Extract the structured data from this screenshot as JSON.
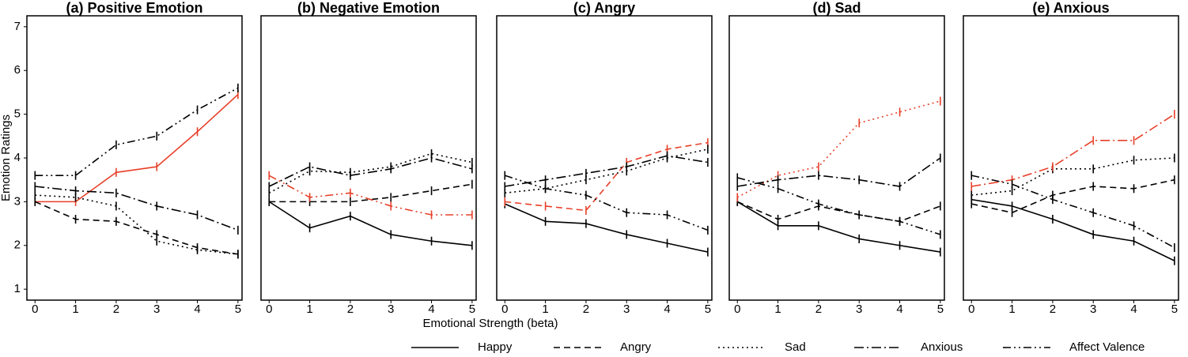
{
  "chart_data": {
    "type": "line",
    "y_label": "Emotion Ratings",
    "x_label": "Emotional Strength (beta)",
    "x": [
      0,
      1,
      2,
      3,
      4,
      5
    ],
    "xlim": [
      -0.2,
      5.1
    ],
    "xticks": [
      0,
      1,
      2,
      3,
      4,
      5
    ],
    "ylim": [
      0.75,
      7.25
    ],
    "yticks": [
      1,
      2,
      3,
      4,
      5,
      6,
      7
    ],
    "error_bar": 0.1,
    "series_styles": [
      {
        "name": "Happy",
        "dash": "solid"
      },
      {
        "name": "Angry",
        "dash": "dashed"
      },
      {
        "name": "Sad",
        "dash": "dotted"
      },
      {
        "name": "Anxious",
        "dash": "dashdot"
      },
      {
        "name": "Affect Valence",
        "dash": "dashdotdot"
      }
    ],
    "panels": [
      {
        "title": "(a) Positive Emotion",
        "series": [
          {
            "color": "#e8402a",
            "values": [
              3.0,
              3.0,
              3.67,
              3.8,
              4.6,
              5.45
            ]
          },
          {
            "color": "#000000",
            "values": [
              3.0,
              2.6,
              2.55,
              2.25,
              1.95,
              1.8
            ]
          },
          {
            "color": "#000000",
            "values": [
              3.15,
              3.1,
              2.9,
              2.1,
              1.9,
              1.8
            ]
          },
          {
            "color": "#000000",
            "values": [
              3.35,
              3.25,
              3.2,
              2.9,
              2.7,
              2.35
            ]
          },
          {
            "color": "#000000",
            "values": [
              3.6,
              3.6,
              4.3,
              4.5,
              5.1,
              5.6
            ]
          }
        ]
      },
      {
        "title": "(b) Negative Emotion",
        "series": [
          {
            "color": "#000000",
            "values": [
              3.0,
              2.4,
              2.67,
              2.25,
              2.1,
              2.0
            ]
          },
          {
            "color": "#000000",
            "values": [
              3.0,
              3.0,
              3.0,
              3.1,
              3.25,
              3.4
            ]
          },
          {
            "color": "#000000",
            "values": [
              3.2,
              3.7,
              3.67,
              3.8,
              4.1,
              3.9
            ]
          },
          {
            "color": "#000000",
            "values": [
              3.35,
              3.8,
              3.6,
              3.75,
              4.0,
              3.75
            ]
          },
          {
            "color": "#e8402a",
            "values": [
              3.6,
              3.1,
              3.2,
              2.9,
              2.7,
              2.7
            ]
          }
        ]
      },
      {
        "title": "(c) Angry",
        "series": [
          {
            "color": "#000000",
            "values": [
              2.95,
              2.55,
              2.5,
              2.25,
              2.05,
              1.85
            ]
          },
          {
            "color": "#e8402a",
            "values": [
              3.0,
              2.9,
              2.8,
              3.9,
              4.2,
              4.35
            ]
          },
          {
            "color": "#000000",
            "values": [
              3.2,
              3.3,
              3.5,
              3.7,
              4.0,
              4.2
            ]
          },
          {
            "color": "#000000",
            "values": [
              3.35,
              3.5,
              3.65,
              3.8,
              4.05,
              3.9
            ]
          },
          {
            "color": "#000000",
            "values": [
              3.6,
              3.3,
              3.15,
              2.75,
              2.7,
              2.35
            ]
          }
        ]
      },
      {
        "title": "(d) Sad",
        "series": [
          {
            "color": "#000000",
            "values": [
              3.0,
              2.45,
              2.45,
              2.15,
              2.0,
              1.85
            ]
          },
          {
            "color": "#000000",
            "values": [
              3.0,
              2.6,
              2.9,
              2.7,
              2.55,
              2.9
            ]
          },
          {
            "color": "#e8402a",
            "values": [
              3.1,
              3.6,
              3.8,
              4.8,
              5.05,
              5.3
            ]
          },
          {
            "color": "#000000",
            "values": [
              3.35,
              3.5,
              3.6,
              3.5,
              3.35,
              4.0
            ]
          },
          {
            "color": "#000000",
            "values": [
              3.55,
              3.3,
              2.95,
              2.7,
              2.55,
              2.25
            ]
          }
        ]
      },
      {
        "title": "(e) Anxious",
        "series": [
          {
            "color": "#000000",
            "values": [
              3.05,
              2.9,
              2.6,
              2.25,
              2.1,
              1.65
            ]
          },
          {
            "color": "#000000",
            "values": [
              2.95,
              2.75,
              3.15,
              3.35,
              3.3,
              3.5
            ]
          },
          {
            "color": "#000000",
            "values": [
              3.15,
              3.25,
              3.75,
              3.75,
              3.95,
              4.0
            ]
          },
          {
            "color": "#e8402a",
            "values": [
              3.35,
              3.5,
              3.8,
              4.4,
              4.4,
              5.0
            ]
          },
          {
            "color": "#000000",
            "values": [
              3.6,
              3.4,
              3.05,
              2.75,
              2.45,
              1.95
            ]
          }
        ]
      }
    ]
  }
}
